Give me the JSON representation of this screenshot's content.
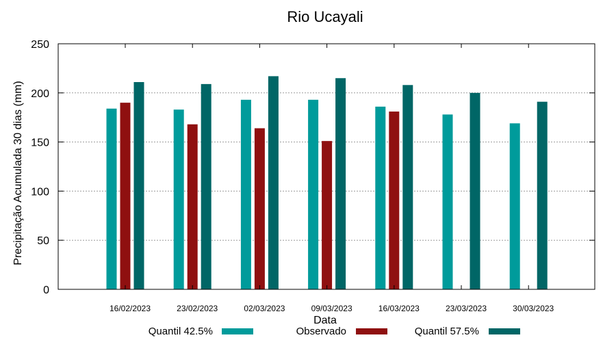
{
  "chart_data": {
    "type": "bar",
    "title": "Rio Ucayali",
    "xlabel": "Data",
    "ylabel": "Precipitação Acumulada 30 dias (mm)",
    "ylim": [
      0,
      250
    ],
    "yticks": [
      0,
      50,
      100,
      150,
      200,
      250
    ],
    "grid": true,
    "legend_position": "bottom",
    "categories": [
      "16/02/2023",
      "23/02/2023",
      "02/03/2023",
      "09/03/2023",
      "16/03/2023",
      "23/03/2023",
      "30/03/2023"
    ],
    "series": [
      {
        "name": "Quantil 42.5%",
        "color": "#009b9b",
        "values": [
          184,
          183,
          193,
          193,
          186,
          178,
          169
        ]
      },
      {
        "name": "Observado",
        "color": "#8f1010",
        "values": [
          190,
          168,
          164,
          151,
          181,
          null,
          null
        ]
      },
      {
        "name": "Quantil 57.5%",
        "color": "#006666",
        "values": [
          211,
          209,
          217,
          215,
          208,
          200,
          191
        ]
      }
    ]
  }
}
